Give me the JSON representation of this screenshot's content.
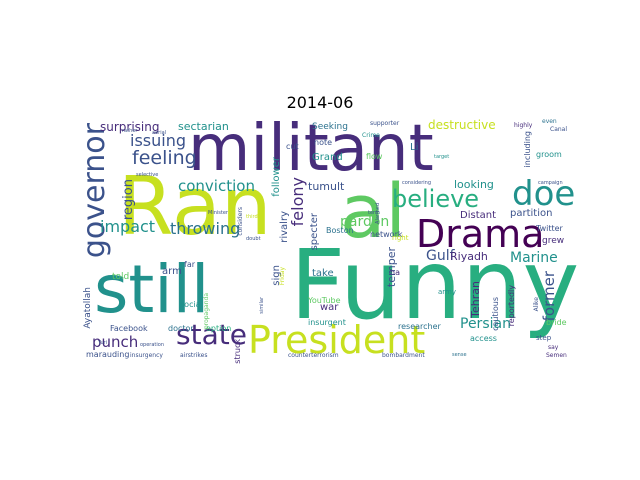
{
  "title": "2014-06",
  "colors": {
    "dark": "#472d7b",
    "navy": "#3b528b",
    "blue": "#2c728e",
    "teal": "#21918c",
    "green": "#28ae80",
    "lime": "#5ec962",
    "yellow": "#c7e020",
    "bright": "#fde725",
    "purple": "#440154"
  },
  "words": {
    "militant": "militant",
    "ran": "Ran",
    "al": "al",
    "funny": "Funny",
    "still": "still",
    "drama": "Drama",
    "president": "President",
    "state": "state",
    "governor": "governor",
    "doe": "doe",
    "believe": "believe",
    "feeling": "feeling",
    "issuing": "issuing",
    "surprising": "surprising",
    "sectarian": "sectarian",
    "conviction": "conviction",
    "region": "region",
    "impact": "impact",
    "throwing": "throwing",
    "punch": "punch",
    "pardon": "pardon",
    "felony": "felony",
    "gulf": "Gulf",
    "riyadh": "Riyadh",
    "marine": "Marine",
    "persian": "Persian",
    "former": "former",
    "destructive": "destructive",
    "tumult": "tumult",
    "looking": "looking",
    "distant": "Distant",
    "partition": "partition",
    "grand": "Grand",
    "flow": "flow",
    "li": "Li",
    "note": "note",
    "cut": "cut",
    "seeking": "Seeking",
    "supporter": "supporter",
    "even": "even",
    "highly": "highly",
    "canal": "Canal",
    "crime": "Crime",
    "target": "target",
    "including": "including",
    "groom": "groom",
    "campaign": "campaign",
    "considering": "considering",
    "twitter": "Twitter",
    "grew": "grew",
    "follower": "follower",
    "rivalry": "rivalry",
    "specter": "specter",
    "boston": "Boston",
    "network": "network",
    "temper": "temper",
    "tehran": "Tehran",
    "take": "take",
    "war": "war",
    "sign": "sign",
    "arm": "arm",
    "told": "told",
    "far": "far",
    "ayatollah": "Ayatollah",
    "social": "social",
    "facebook": "Facebook",
    "doctor": "doctor",
    "option": "option",
    "youtube": "YouTube",
    "insurgent": "insurgent",
    "researcher": "researcher",
    "access": "access",
    "cautious": "cautious",
    "reportedly": "reportedly",
    "army": "army",
    "step": "step",
    "bride": "bride",
    "alike": "Alike",
    "say": "say",
    "semen": "Semen",
    "sense": "sense",
    "marauding": "marauding",
    "insurgency": "insurgency",
    "airstrikes": "airstrikes",
    "struck": "struck",
    "counterterrorism": "counterterrorism",
    "bombardment": "bombardment",
    "propaganda": "propaganda",
    "similar": "similar",
    "friday": "Friday",
    "considers": "considers",
    "minister": "Minister",
    "third": "third",
    "doubt": "doubt",
    "right": "right",
    "ha": "ha",
    "term": "term",
    "alarmed": "Alarmed",
    "rather": "rather",
    "aerial": "aerial",
    "selective": "selective",
    "yuri": "Yuri",
    "operation": "operation"
  }
}
